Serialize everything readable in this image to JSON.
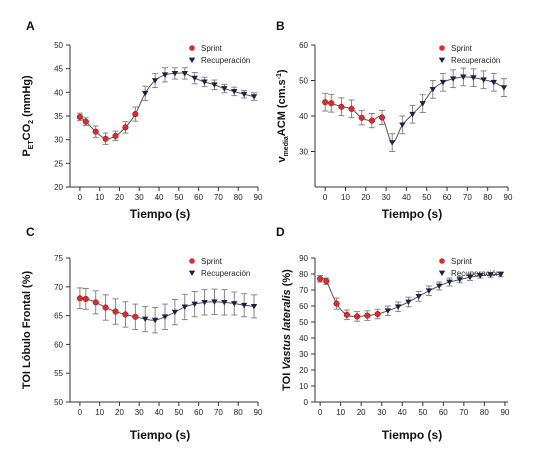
{
  "colors": {
    "sprint": "#e02a2a",
    "recovery": "#1f1f4a",
    "errorbar": "#7a7a7a",
    "axis": "#333333"
  },
  "legend": {
    "sprint": "Sprint",
    "recovery": "Recuperación"
  },
  "chart_data": [
    {
      "panel": "A",
      "type": "scatter",
      "xlabel": "Tiempo (s)",
      "ylabel": {
        "main": "P",
        "sub": "ET",
        "rest": "CO",
        "sub2": "2",
        "unit": " (mmHg)"
      },
      "xlim": [
        -5,
        90
      ],
      "ylim": [
        20,
        50
      ],
      "xticks": [
        0,
        10,
        20,
        30,
        40,
        50,
        60,
        70,
        80,
        90
      ],
      "yticks": [
        20,
        25,
        30,
        35,
        40,
        45,
        50
      ],
      "grid": false,
      "legend_position": "top-right",
      "sprint": {
        "x": [
          0,
          3,
          8,
          13,
          18,
          23,
          28
        ],
        "y": [
          34.8,
          33.8,
          31.7,
          30.2,
          30.8,
          32.6,
          35.4
        ],
        "err": [
          0.8,
          0.8,
          1.2,
          1.2,
          1.0,
          1.2,
          1.5
        ]
      },
      "recovery": {
        "x": [
          33,
          38,
          43,
          48,
          53,
          58,
          63,
          68,
          73,
          78,
          83,
          88
        ],
        "y": [
          39.8,
          42.5,
          43.7,
          44.0,
          44.0,
          43.0,
          42.2,
          41.6,
          40.8,
          40.2,
          39.6,
          39.1
        ],
        "err": [
          1.5,
          1.5,
          1.5,
          1.2,
          1.2,
          1.2,
          1.0,
          1.0,
          0.9,
          0.9,
          0.8,
          0.8
        ]
      }
    },
    {
      "panel": "B",
      "type": "scatter",
      "xlabel": "Tiempo (s)",
      "ylabel": {
        "main": "v",
        "sub": "media",
        "rest": "ACM (cm.s",
        "sup": "-1",
        "unit": ")"
      },
      "xlim": [
        -5,
        90
      ],
      "ylim": [
        20,
        60
      ],
      "xticks": [
        0,
        10,
        20,
        30,
        40,
        50,
        60,
        70,
        80,
        90
      ],
      "yticks": [
        30,
        40,
        50,
        60
      ],
      "grid": false,
      "legend_position": "top-right",
      "sprint": {
        "x": [
          0,
          3,
          8,
          13,
          18,
          23,
          28
        ],
        "y": [
          43.9,
          43.6,
          42.6,
          42.0,
          39.5,
          38.7,
          39.6
        ],
        "err": [
          2.5,
          2.5,
          2.5,
          2.5,
          2.0,
          2.0,
          2.0
        ]
      },
      "recovery": {
        "x": [
          33,
          38,
          43,
          48,
          53,
          58,
          63,
          68,
          73,
          78,
          83,
          88
        ],
        "y": [
          32.5,
          37.5,
          40.5,
          43.5,
          47.5,
          49.5,
          50.5,
          51.0,
          50.8,
          50.2,
          49.5,
          48.0
        ],
        "err": [
          2.5,
          2.5,
          2.5,
          2.5,
          2.5,
          2.5,
          2.5,
          2.5,
          2.5,
          2.5,
          2.5,
          2.5
        ]
      }
    },
    {
      "panel": "C",
      "type": "scatter",
      "xlabel": "Tiempo (s)",
      "ylabel": {
        "main": "TOI Lóbulo Frontal (%)"
      },
      "xlim": [
        -5,
        90
      ],
      "ylim": [
        50,
        75
      ],
      "xticks": [
        0,
        10,
        20,
        30,
        40,
        50,
        60,
        70,
        80,
        90
      ],
      "yticks": [
        50,
        55,
        60,
        65,
        70,
        75
      ],
      "grid": false,
      "legend_position": "top-right",
      "sprint": {
        "x": [
          0,
          3,
          8,
          13,
          18,
          23,
          28
        ],
        "y": [
          68.0,
          67.9,
          67.3,
          66.4,
          65.7,
          65.2,
          64.8
        ],
        "err": [
          1.8,
          1.8,
          2.0,
          2.2,
          2.2,
          2.2,
          2.2
        ]
      },
      "recovery": {
        "x": [
          33,
          38,
          43,
          48,
          53,
          58,
          63,
          68,
          73,
          78,
          83,
          88
        ],
        "y": [
          64.4,
          64.2,
          64.8,
          65.6,
          66.5,
          67.0,
          67.3,
          67.4,
          67.3,
          67.1,
          66.8,
          66.6
        ],
        "err": [
          2.2,
          2.2,
          2.2,
          2.2,
          2.2,
          2.2,
          2.2,
          2.2,
          2.2,
          2.0,
          2.0,
          2.0
        ]
      }
    },
    {
      "panel": "D",
      "type": "scatter",
      "xlabel": "Tiempo (s)",
      "ylabel": {
        "main": "TOI ",
        "ital": "Vastus lateralis",
        "unit": " (%)"
      },
      "xlim": [
        -2.5,
        91.5
      ],
      "ylim": [
        0,
        90
      ],
      "xticks": [
        0,
        10,
        20,
        30,
        40,
        50,
        60,
        70,
        80,
        90
      ],
      "yticks": [
        0,
        10,
        20,
        30,
        40,
        50,
        60,
        70,
        80,
        90
      ],
      "grid": false,
      "legend_position": "top-right",
      "sprint": {
        "x": [
          0,
          3,
          8,
          13,
          18,
          23,
          28
        ],
        "y": [
          77.0,
          75.5,
          61.5,
          54.5,
          53.5,
          54.0,
          55.0
        ],
        "err": [
          2.0,
          2.0,
          3.5,
          3.0,
          3.0,
          3.0,
          3.0
        ]
      },
      "recovery": {
        "x": [
          33,
          38,
          43,
          48,
          53,
          58,
          63,
          68,
          73,
          78,
          83,
          88
        ],
        "y": [
          57.0,
          59.5,
          62.5,
          66.0,
          69.5,
          72.5,
          75.0,
          76.5,
          78.0,
          79.0,
          79.5,
          79.8
        ],
        "err": [
          3.0,
          3.0,
          3.0,
          3.0,
          3.0,
          2.5,
          2.5,
          2.0,
          2.0,
          1.5,
          1.5,
          1.5
        ]
      }
    }
  ]
}
